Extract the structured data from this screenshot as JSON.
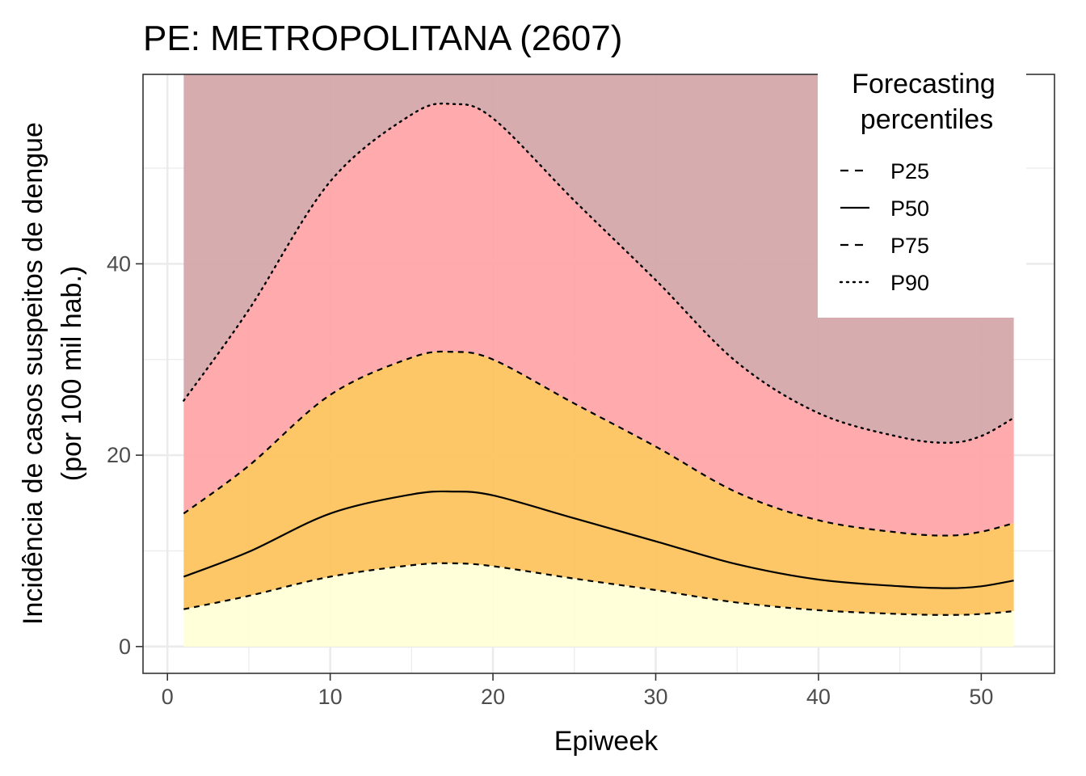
{
  "chart_data": {
    "type": "area",
    "title": "PE: METROPOLITANA (2607)",
    "xlabel": "Epiweek",
    "ylabel_line1": "Incidência de casos suspeitos de dengue",
    "ylabel_line2": "(por 100 mil hab.)",
    "xlim": [
      -1.5,
      54.5
    ],
    "ylim": [
      -2.8,
      59.8
    ],
    "x_ticks": [
      0,
      10,
      20,
      30,
      40,
      50
    ],
    "y_ticks": [
      0,
      20,
      40
    ],
    "grid": true,
    "legend": {
      "title_line1": "Forecasting",
      "title_line2": "percentiles",
      "position": "top-right",
      "entries": [
        {
          "label": "P25",
          "dash": "dashed"
        },
        {
          "label": "P50",
          "dash": "solid"
        },
        {
          "label": "P75",
          "dash": "dashed"
        },
        {
          "label": "P90",
          "dash": "dotted"
        }
      ]
    },
    "band_colors": {
      "below_p25": "#FFFFD6",
      "p25_p75": "#FDC15A",
      "p75_p90": "#FFA3A6",
      "above_p90": "#D4A5A8"
    },
    "x": [
      1,
      5,
      10,
      15,
      17.5,
      20,
      25,
      30,
      35,
      40,
      45,
      48,
      50,
      52
    ],
    "series": [
      {
        "name": "P25",
        "values": [
          3.9,
          5.3,
          7.3,
          8.5,
          8.7,
          8.4,
          7.1,
          5.9,
          4.6,
          3.8,
          3.4,
          3.3,
          3.4,
          3.7
        ]
      },
      {
        "name": "P50",
        "values": [
          7.3,
          9.9,
          13.9,
          15.9,
          16.2,
          15.8,
          13.4,
          11.0,
          8.6,
          7.0,
          6.3,
          6.1,
          6.3,
          6.9
        ]
      },
      {
        "name": "P75",
        "values": [
          13.9,
          18.9,
          26.3,
          30.2,
          30.8,
          30.0,
          25.4,
          20.9,
          16.1,
          13.2,
          11.9,
          11.6,
          12.0,
          12.9
        ]
      },
      {
        "name": "P90",
        "values": [
          25.7,
          35.2,
          48.6,
          55.6,
          56.7,
          55.2,
          46.6,
          38.3,
          29.7,
          24.4,
          21.9,
          21.3,
          22.0,
          23.9
        ]
      }
    ],
    "top_band_max": 59.8
  }
}
